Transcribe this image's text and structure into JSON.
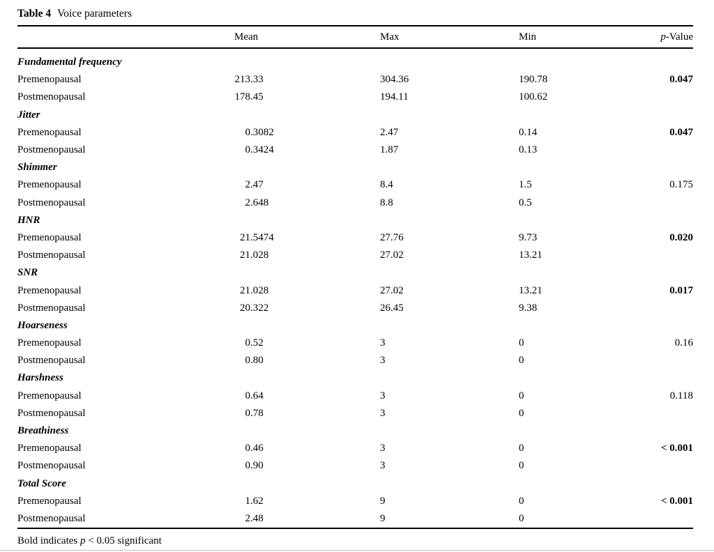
{
  "page": {
    "title_label": "Table 4",
    "title_text": "Voice parameters",
    "footnote": {
      "prefix": "Bold indicates ",
      "italic": "p",
      "suffix": " < 0.05 significant"
    }
  },
  "header": {
    "mean": "Mean",
    "max": "Max",
    "min": "Min",
    "p_italic": "p",
    "p_suffix": "-Value"
  },
  "chart_data": {
    "type": "table",
    "title": "Table 4 Voice parameters",
    "columns": [
      "Mean",
      "Max",
      "Min",
      "p-Value"
    ],
    "bold_meaning": "Bold indicates p < 0.05 significant",
    "groups": [
      {
        "parameter": "Fundamental frequency",
        "rows": [
          {
            "label": "Premenopausal",
            "mean": "213.33",
            "max": "304.36",
            "min": "190.78",
            "p": "0.047",
            "p_bold": true
          },
          {
            "label": "Postmenopausal",
            "mean": "178.45",
            "max": "194.11",
            "min": "100.62",
            "p": "",
            "p_bold": false
          }
        ]
      },
      {
        "parameter": "Jitter",
        "rows": [
          {
            "label": "Premenopausal",
            "mean": "0.3082",
            "max": "2.47",
            "min": "0.14",
            "p": "0.047",
            "p_bold": true
          },
          {
            "label": "Postmenopausal",
            "mean": "0.3424",
            "max": "1.87",
            "min": "0.13",
            "p": "",
            "p_bold": false
          }
        ]
      },
      {
        "parameter": "Shimmer",
        "rows": [
          {
            "label": "Premenopausal",
            "mean": "2.47",
            "max": "8.4",
            "min": "1.5",
            "p": "0.175",
            "p_bold": false
          },
          {
            "label": "Postmenopausal",
            "mean": "2.648",
            "max": "8.8",
            "min": "0.5",
            "p": "",
            "p_bold": false
          }
        ]
      },
      {
        "parameter": "HNR",
        "rows": [
          {
            "label": "Premenopausal",
            "mean": "21.5474",
            "max": "27.76",
            "min": "9.73",
            "p": "0.020",
            "p_bold": true
          },
          {
            "label": "Postmenopausal",
            "mean": "21.028",
            "max": "27.02",
            "min": "13.21",
            "p": "",
            "p_bold": false
          }
        ]
      },
      {
        "parameter": "SNR",
        "rows": [
          {
            "label": "Premenopausal",
            "mean": "21.028",
            "max": "27.02",
            "min": "13.21",
            "p": "0.017",
            "p_bold": true
          },
          {
            "label": "Postmenopausal",
            "mean": "20.322",
            "max": "26.45",
            "min": "9.38",
            "p": "",
            "p_bold": false
          }
        ]
      },
      {
        "parameter": "Hoarseness",
        "rows": [
          {
            "label": "Premenopausal",
            "mean": "0.52",
            "max": "3",
            "min": "0",
            "p": "0.16",
            "p_bold": false
          },
          {
            "label": "Postmenopausal",
            "mean": "0.80",
            "max": "3",
            "min": "0",
            "p": "",
            "p_bold": false
          }
        ]
      },
      {
        "parameter": "Harshness",
        "rows": [
          {
            "label": "Premenopausal",
            "mean": "0.64",
            "max": "3",
            "min": "0",
            "p": "0.118",
            "p_bold": false
          },
          {
            "label": "Postmenopausal",
            "mean": "0.78",
            "max": "3",
            "min": "0",
            "p": "",
            "p_bold": false
          }
        ]
      },
      {
        "parameter": "Breathiness",
        "rows": [
          {
            "label": "Premenopausal",
            "mean": "0.46",
            "max": "3",
            "min": "0",
            "p": "< 0.001",
            "p_bold": true
          },
          {
            "label": "Postmenopausal",
            "mean": "0.90",
            "max": "3",
            "min": "0",
            "p": "",
            "p_bold": false
          }
        ]
      },
      {
        "parameter": "Total Score",
        "rows": [
          {
            "label": "Premenopausal",
            "mean": "1.62",
            "max": "9",
            "min": "0",
            "p": "< 0.001",
            "p_bold": true
          },
          {
            "label": "Postmenopausal",
            "mean": "2.48",
            "max": "9",
            "min": "0",
            "p": "",
            "p_bold": false
          }
        ]
      }
    ]
  }
}
